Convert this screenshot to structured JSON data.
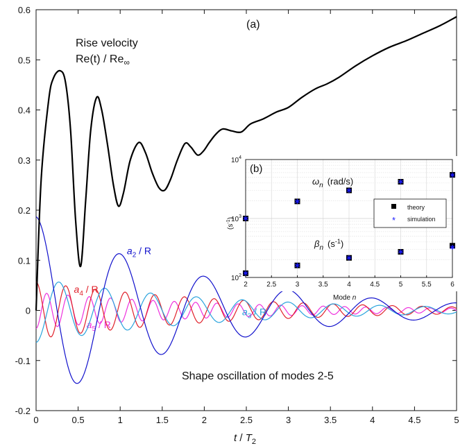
{
  "chart_data": [
    {
      "type": "line",
      "panel_label": "(a)",
      "xlabel": "t / T 2",
      "xlabel_parts": {
        "main": "t",
        "sep": " / ",
        "sym": "T",
        "sub": "2"
      },
      "ylabel": "",
      "xlim": [
        0,
        5
      ],
      "ylim": [
        -0.2,
        0.6
      ],
      "xticks": [
        "0",
        "0.5",
        "1",
        "1.5",
        "2",
        "2.5",
        "3",
        "3.5",
        "4",
        "4.5",
        "5"
      ],
      "yticks": [
        "-0.2",
        "-0.1",
        "0",
        "0.1",
        "0.2",
        "0.3",
        "0.4",
        "0.5",
        "0.6"
      ],
      "grid": false,
      "annotations": {
        "rise_velocity": "Rise velocity",
        "re_ratio": "Re(t) / Re",
        "re_ratio_sub": "∞",
        "shape_oscillation": "Shape oscillation of modes 2-5"
      },
      "series": [
        {
          "name": "Re(t) / Re∞",
          "color": "#000000",
          "points": [
            [
              0,
              0.0
            ],
            [
              0.06,
              0.26
            ],
            [
              0.15,
              0.42
            ],
            [
              0.21,
              0.465
            ],
            [
              0.29,
              0.478
            ],
            [
              0.35,
              0.455
            ],
            [
              0.41,
              0.36
            ],
            [
              0.47,
              0.18
            ],
            [
              0.53,
              0.088
            ],
            [
              0.59,
              0.22
            ],
            [
              0.65,
              0.36
            ],
            [
              0.72,
              0.425
            ],
            [
              0.78,
              0.4
            ],
            [
              0.85,
              0.33
            ],
            [
              0.92,
              0.25
            ],
            [
              0.98,
              0.208
            ],
            [
              1.04,
              0.235
            ],
            [
              1.12,
              0.3
            ],
            [
              1.22,
              0.335
            ],
            [
              1.3,
              0.315
            ],
            [
              1.38,
              0.275
            ],
            [
              1.46,
              0.245
            ],
            [
              1.53,
              0.24
            ],
            [
              1.6,
              0.262
            ],
            [
              1.68,
              0.3
            ],
            [
              1.77,
              0.333
            ],
            [
              1.84,
              0.326
            ],
            [
              1.92,
              0.31
            ],
            [
              1.99,
              0.318
            ],
            [
              2.06,
              0.335
            ],
            [
              2.14,
              0.352
            ],
            [
              2.22,
              0.362
            ],
            [
              2.33,
              0.358
            ],
            [
              2.44,
              0.356
            ],
            [
              2.55,
              0.372
            ],
            [
              2.7,
              0.382
            ],
            [
              2.86,
              0.396
            ],
            [
              3.0,
              0.405
            ],
            [
              3.16,
              0.425
            ],
            [
              3.32,
              0.442
            ],
            [
              3.46,
              0.452
            ],
            [
              3.6,
              0.465
            ],
            [
              3.8,
              0.488
            ],
            [
              4.0,
              0.508
            ],
            [
              4.2,
              0.525
            ],
            [
              4.4,
              0.538
            ],
            [
              4.6,
              0.553
            ],
            [
              4.8,
              0.568
            ],
            [
              5.0,
              0.586
            ]
          ]
        },
        {
          "name": "a 2 / R",
          "label": {
            "a": "a",
            "sub": "2",
            "tail": " / R"
          },
          "color": "#1010cc",
          "amplitude": 0.187,
          "period": 1.0,
          "decay": 0.505,
          "phase": 0.0,
          "label_pos": [
            1.08,
            0.112
          ]
        },
        {
          "name": "a 3 / R",
          "label": {
            "a": "a",
            "sub": "3",
            "tail": " / R"
          },
          "color": "#29a3dd",
          "amplitude": -0.064,
          "period": 0.545,
          "decay": 0.45,
          "phase": 0.0,
          "label_pos": [
            2.45,
            -0.01
          ]
        },
        {
          "name": "a 4 / R",
          "label": {
            "a": "a",
            "sub": "4",
            "tail": " / R"
          },
          "color": "#e0202a",
          "amplitude": 0.057,
          "period": 0.353,
          "decay": 0.42,
          "phase": 0.0,
          "label_pos": [
            0.45,
            0.035
          ]
        },
        {
          "name": "a 5 / R",
          "label": {
            "a": "a",
            "sub": "5",
            "tail": " / R"
          },
          "color": "#ee30dd",
          "amplitude": -0.036,
          "period": 0.253,
          "decay": 0.42,
          "phase": 0.0,
          "label_pos": [
            0.6,
            -0.035
          ]
        }
      ]
    },
    {
      "type": "scatter",
      "panel_label": "(b)",
      "xlabel": "Mode n",
      "xlabel_parts": {
        "main": "Mode ",
        "var": "n"
      },
      "ylabel": "(s -1 )",
      "ylabel_parts": {
        "open": "(s",
        "sup": "-1",
        "close": ")"
      },
      "xlim": [
        2,
        6
      ],
      "ylim": [
        100,
        10000
      ],
      "y_scale": "log",
      "xticks": [
        "2",
        "2.5",
        "3",
        "3.5",
        "4",
        "4.5",
        "5",
        "5.5",
        "6"
      ],
      "yticks": [
        {
          "base": "10",
          "exp": "2",
          "value": 100
        },
        {
          "base": "10",
          "exp": "3",
          "value": 1000
        },
        {
          "base": "10",
          "exp": "4",
          "value": 10000
        }
      ],
      "grid": true,
      "legend_position": "center-right",
      "annotations": {
        "omega": {
          "sym": "ω",
          "sub": "n",
          "unit": "(rad/s)"
        },
        "beta": {
          "sym": "β",
          "sub": "n",
          "unit_open": "(s",
          "unit_sup": "-1",
          "unit_close": ")"
        }
      },
      "series": [
        {
          "name": "theory",
          "marker": "square",
          "color": "#000000",
          "omega": [
            [
              2,
              1000
            ],
            [
              3,
              1950
            ],
            [
              4,
              3000
            ],
            [
              5,
              4200
            ],
            [
              6,
              5500
            ]
          ],
          "beta": [
            [
              2,
              118
            ],
            [
              3,
              160
            ],
            [
              4,
              215
            ],
            [
              5,
              272
            ],
            [
              6,
              345
            ]
          ]
        },
        {
          "name": "simulation",
          "marker": "asterisk",
          "color": "#1a1aff",
          "omega": [
            [
              2,
              1000
            ],
            [
              3,
              1950
            ],
            [
              4,
              3000
            ],
            [
              5,
              4200
            ],
            [
              6,
              5450
            ]
          ],
          "beta": [
            [
              2,
              118
            ],
            [
              3,
              160
            ],
            [
              4,
              215
            ],
            [
              5,
              272
            ],
            [
              6,
              325
            ]
          ]
        }
      ]
    }
  ]
}
